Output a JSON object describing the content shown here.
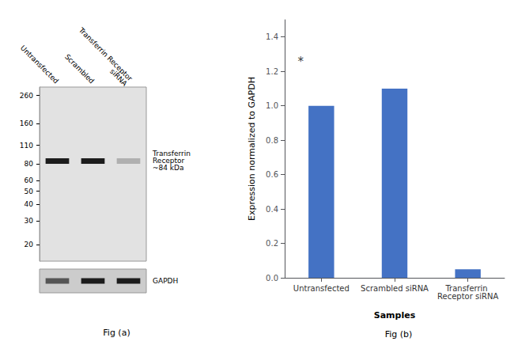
{
  "chart_data": [
    {
      "type": "blot",
      "title": "Fig (a)",
      "categories": [
        "Untransfected",
        "Scrambled",
        "Transferrin Receptor\nsiRNA"
      ],
      "log": "y",
      "ylim": [
        15,
        300
      ],
      "yticks": [
        260,
        160,
        110,
        80,
        60,
        50,
        40,
        30,
        20
      ],
      "series": [
        {
          "name": "Transferrin\nReceptor\n~84 kDa",
          "values": [
            84,
            84,
            84
          ],
          "colors": [
            "#1c1c1c",
            "#1c1c1c",
            "#b0b0b0"
          ]
        },
        {
          "name": "GAPDH",
          "colors": [
            "#555555",
            "#1c1c1c",
            "#1c1c1c"
          ]
        }
      ]
    },
    {
      "type": "bar",
      "title": "Fig (b)",
      "categories": [
        "Untransfected",
        "Scrambled siRNA",
        "Transferrin Receptor siRNA"
      ],
      "values": [
        1.0,
        1.1,
        0.05
      ],
      "color": "#4472C4",
      "xlabel": "Samples",
      "ylabel": "Expression normalized to GAPDH",
      "ylim": [
        0,
        1.5
      ],
      "yticks": [
        {
          "value": 0,
          "label": "0.0"
        },
        0.2,
        0.4,
        0.6,
        0.8,
        {
          "value": 1.0,
          "label": "1.0"
        },
        1.2,
        1.4
      ],
      "grid": false,
      "annotations": [
        {
          "text": "*",
          "x": "Untransfected",
          "y": 1.22
        }
      ]
    }
  ]
}
